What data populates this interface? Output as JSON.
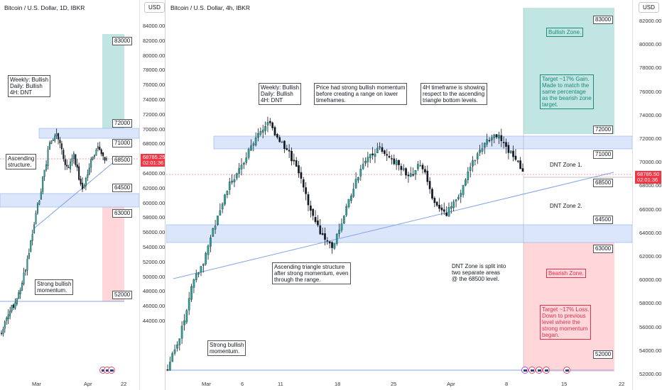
{
  "left_chart": {
    "title": "Bitcoin / U.S. Dollar, 1D, IBKR",
    "currency": "USD",
    "y_ticks": [
      "84000.00",
      "82000.00",
      "80000.00",
      "78000.00",
      "76000.00",
      "74000.00",
      "72000.00",
      "70000.00",
      "68000.00",
      "66000.00",
      "64000.00",
      "62000.00",
      "60000.00",
      "58000.00",
      "56000.00",
      "54000.00",
      "52000.00",
      "50000.00",
      "48000.00",
      "46000.00",
      "44000.00"
    ],
    "x_ticks": [
      "Mar",
      "Apr",
      "22"
    ],
    "price": "68785.25",
    "countdown": "02:01:36",
    "levels": [
      "83000",
      "72000",
      "71000",
      "68500",
      "64500",
      "63000",
      "52000"
    ],
    "notes": {
      "bias": "Weekly: Bullish\nDaily: Bullish\n4H: DNT",
      "ascending": "Ascending\nstructure.",
      "bullish": "Strong bullish\nmomentum."
    }
  },
  "right_chart": {
    "title": "Bitcoin / U.S. Dollar, 4h, IBKR",
    "currency": "USD",
    "y_ticks": [
      "82000.00",
      "80000.00",
      "78000.00",
      "76000.00",
      "74000.00",
      "72000.00",
      "70000.00",
      "68000.00",
      "66000.00",
      "64000.00",
      "62000.00",
      "60000.00",
      "58000.00",
      "56000.00",
      "54000.00",
      "52000.00"
    ],
    "x_ticks": [
      "Mar",
      "6",
      "11",
      "18",
      "25",
      "Apr",
      "8",
      "15",
      "22"
    ],
    "price": "68785.50",
    "countdown": "02:01:36",
    "levels": [
      "83000",
      "72000",
      "71000",
      "68500",
      "64500",
      "63000",
      "52000"
    ],
    "notes": {
      "bias": "Weekly: Bullish\nDaily: Bullish\n4H: DNT",
      "momentum": "Price had strong bullish momentum\nbefore creating a range on lower\ntimeframes.",
      "timeframe": "4H timeframe is showing\nrespect to the ascending\ntriangle bottom levels.",
      "triangle": "Ascending triangle structure\nafter strong momentum, even\nthrough the range.",
      "dnt_split": "DNT Zone is split into\ntwo separate areas\n@ the 68500 level.",
      "bullish": "Strong bullish\nmomentum.",
      "dnt1": "DNT Zone 1.",
      "dnt2": "DNT Zone 2."
    },
    "zones": {
      "bullish_title": "Bullish Zone.",
      "bullish_target": "Target ~17% Gain.\nMade to match the\nsame percentage\nas the bearish zone\ntarget.",
      "bearish_title": "Bearish Zone.",
      "bearish_target": "Target ~17% Loss.\nDown to previous\nlevel where the\nstrong momentum\nbegan."
    }
  },
  "colors": {
    "up": "#26a69a",
    "down": "#ef5350",
    "candle": "#131722",
    "bull_zone": "#b2dfdb",
    "bear_zone": "#ffcdd2",
    "range_band": "#dbe6fb",
    "trendline": "#7ea4e8",
    "price_tag": "#f23645"
  }
}
